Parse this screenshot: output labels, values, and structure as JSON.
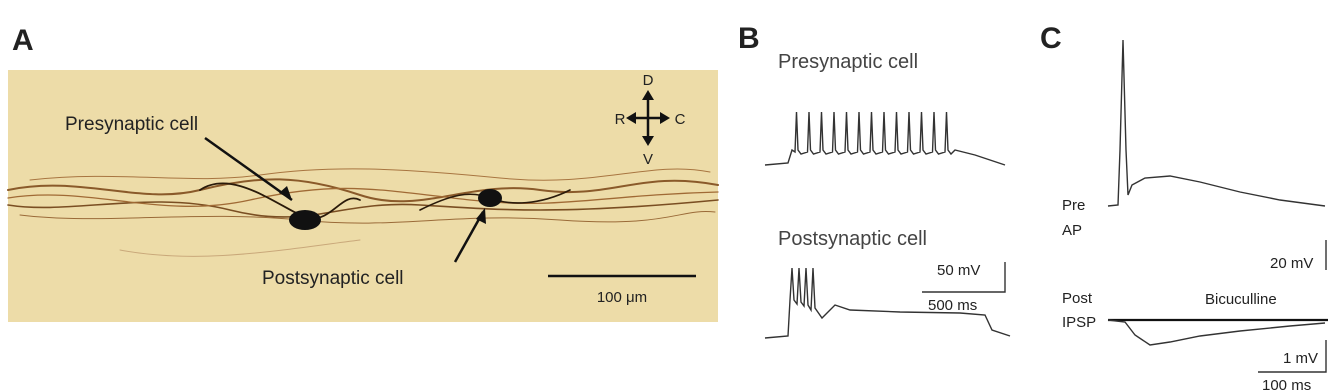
{
  "panels": [
    {
      "label": "A",
      "labels": {
        "presynaptic": "Presynaptic cell",
        "postsynaptic": "Postsynaptic cell",
        "scale": "100 μm"
      },
      "compass": {
        "dorsal": "D",
        "ventral": "V",
        "rostral": "R",
        "caudal": "C"
      }
    },
    {
      "label": "B",
      "labels": {
        "presynaptic": "Presynaptic cell",
        "postsynaptic": "Postsynaptic cell"
      },
      "scale": {
        "voltage": "50 mV",
        "time": "500 ms"
      }
    },
    {
      "label": "C",
      "labels": {
        "pre": "Pre",
        "ap": "AP",
        "post": "Post",
        "ipsp": "IPSP",
        "drug": "Bicuculline"
      },
      "scale": {
        "pre_voltage": "20 mV",
        "post_voltage": "1 mV",
        "time": "100 ms"
      }
    }
  ]
}
